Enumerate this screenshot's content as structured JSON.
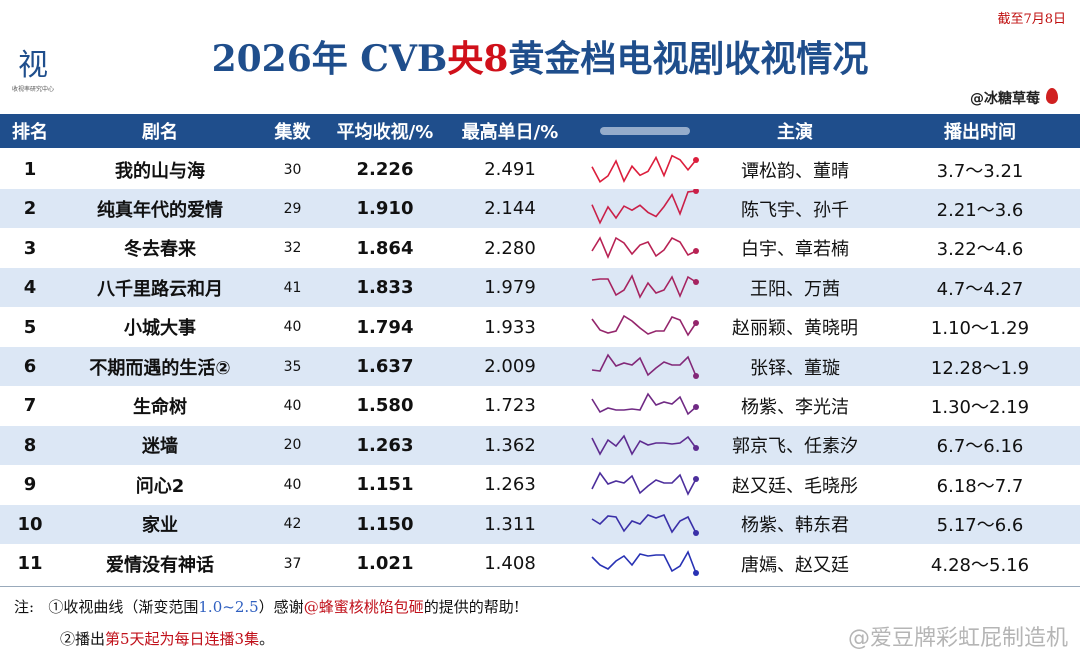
{
  "header": {
    "date_note": "截至7月8日",
    "logo_char": "视",
    "logo_sub": "收视率研究中心",
    "title_parts": [
      "2026年 CVB",
      "央8",
      "黄金档电视剧收视情况"
    ],
    "author": "@冰糖草莓"
  },
  "table": {
    "columns": [
      "排名",
      "剧名",
      "集数",
      "平均收视/%",
      "最高单日/%",
      "主演",
      "播出时间"
    ],
    "rows": [
      [
        "1",
        "我的山与海",
        "30",
        "2.226",
        "2.491",
        "谭松韵、董晴",
        "3.7～3.21"
      ],
      [
        "2",
        "纯真年代的爱情",
        "29",
        "1.910",
        "2.144",
        "陈飞宇、孙千",
        "2.21～3.6"
      ],
      [
        "3",
        "冬去春来",
        "32",
        "1.864",
        "2.280",
        "白宇、章若楠",
        "3.22～4.6"
      ],
      [
        "4",
        "八千里路云和月",
        "41",
        "1.833",
        "1.979",
        "王阳、万茜",
        "4.7～4.27"
      ],
      [
        "5",
        "小城大事",
        "40",
        "1.794",
        "1.933",
        "赵丽颖、黄晓明",
        "1.10～1.29"
      ],
      [
        "6",
        "不期而遇的生活②",
        "35",
        "1.637",
        "2.009",
        "张铎、董璇",
        "12.28～1.9"
      ],
      [
        "7",
        "生命树",
        "40",
        "1.580",
        "1.723",
        "杨紫、李光洁",
        "1.30～2.19"
      ],
      [
        "8",
        "迷墙",
        "20",
        "1.263",
        "1.362",
        "郭京飞、任素汐",
        "6.7～6.16"
      ],
      [
        "9",
        "问心2",
        "40",
        "1.151",
        "1.263",
        "赵又廷、毛晓彤",
        "6.18～7.7"
      ],
      [
        "10",
        "家业",
        "42",
        "1.150",
        "1.311",
        "杨紫、韩东君",
        "5.17～6.6"
      ],
      [
        "11",
        "爱情没有神话",
        "37",
        "1.021",
        "1.408",
        "唐嫣、赵又廷",
        "4.28～5.16"
      ]
    ]
  },
  "notes": {
    "label": "注:",
    "line1": [
      "①收视曲线（渐变范围",
      "1.0~2.5",
      "）感谢",
      "@蜂蜜核桃馅包砸",
      "的提供的帮助!"
    ],
    "line2": [
      "②播出",
      "第5天起为每日连播3集",
      "。"
    ]
  },
  "watermark": "@爱豆牌彩虹屁制造机"
}
